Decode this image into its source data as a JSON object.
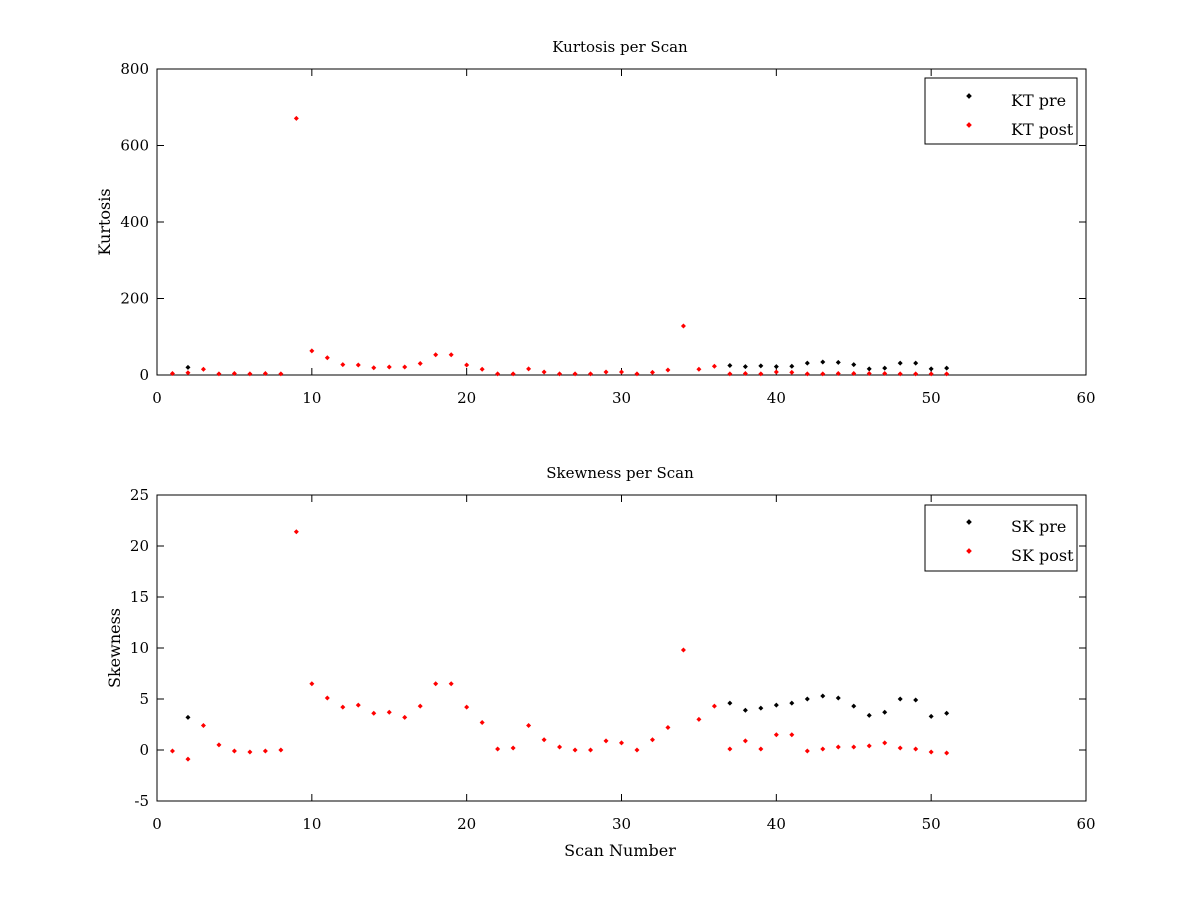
{
  "chart_data": [
    {
      "type": "scatter",
      "title": "Kurtosis per Scan",
      "xlabel": "",
      "ylabel": "Kurtosis",
      "xlim": [
        0,
        60
      ],
      "ylim": [
        0,
        800
      ],
      "x_ticks": [
        0,
        10,
        20,
        30,
        40,
        50,
        60
      ],
      "y_ticks": [
        0,
        200,
        400,
        600,
        800
      ],
      "grid": false,
      "legend_position": "top-right",
      "series": [
        {
          "name": "KT pre",
          "color": "#000000",
          "x": [
            2,
            37,
            38,
            39,
            40,
            41,
            42,
            43,
            44,
            45,
            46,
            47,
            48,
            49,
            50,
            51
          ],
          "y": [
            20,
            25,
            22,
            24,
            22,
            23,
            31,
            34,
            33,
            27,
            16,
            18,
            31,
            31,
            16,
            18
          ]
        },
        {
          "name": "KT post",
          "color": "#ff0000",
          "x": [
            1,
            2,
            3,
            4,
            5,
            6,
            7,
            8,
            9,
            10,
            11,
            12,
            13,
            14,
            15,
            16,
            17,
            18,
            19,
            20,
            21,
            22,
            23,
            24,
            25,
            26,
            27,
            28,
            29,
            30,
            31,
            32,
            33,
            34,
            35,
            36,
            37,
            38,
            39,
            40,
            41,
            42,
            43,
            44,
            45,
            46,
            47,
            48,
            49,
            50,
            51
          ],
          "y": [
            4,
            6,
            15,
            3,
            4,
            3,
            4,
            3,
            671,
            63,
            45,
            27,
            26,
            19,
            21,
            21,
            30,
            53,
            53,
            26,
            15,
            3,
            3,
            16,
            8,
            3,
            3,
            3,
            8,
            8,
            3,
            7,
            13,
            128,
            15,
            23,
            3,
            4,
            3,
            8,
            7,
            3,
            3,
            4,
            4,
            4,
            4,
            3,
            3,
            3,
            3
          ]
        }
      ]
    },
    {
      "type": "scatter",
      "title": "Skewness per Scan",
      "xlabel": "Scan Number",
      "ylabel": "Skewness",
      "xlim": [
        0,
        60
      ],
      "ylim": [
        -5,
        25
      ],
      "x_ticks": [
        0,
        10,
        20,
        30,
        40,
        50,
        60
      ],
      "y_ticks": [
        -5,
        0,
        5,
        10,
        15,
        20,
        25
      ],
      "grid": false,
      "legend_position": "top-right",
      "series": [
        {
          "name": "SK pre",
          "color": "#000000",
          "x": [
            2,
            37,
            38,
            39,
            40,
            41,
            42,
            43,
            44,
            45,
            46,
            47,
            48,
            49,
            50,
            51
          ],
          "y": [
            3.2,
            4.6,
            3.9,
            4.1,
            4.4,
            4.6,
            5.0,
            5.3,
            5.1,
            4.3,
            3.4,
            3.7,
            5.0,
            4.9,
            3.3,
            3.6
          ]
        },
        {
          "name": "SK post",
          "color": "#ff0000",
          "x": [
            1,
            2,
            3,
            4,
            5,
            6,
            7,
            8,
            9,
            10,
            11,
            12,
            13,
            14,
            15,
            16,
            17,
            18,
            19,
            20,
            21,
            22,
            23,
            24,
            25,
            26,
            27,
            28,
            29,
            30,
            31,
            32,
            33,
            34,
            35,
            36,
            37,
            38,
            39,
            40,
            41,
            42,
            43,
            44,
            45,
            46,
            47,
            48,
            49,
            50,
            51
          ],
          "y": [
            -0.1,
            -0.9,
            2.4,
            0.5,
            -0.1,
            -0.2,
            -0.1,
            0.0,
            21.4,
            6.5,
            5.1,
            4.2,
            4.4,
            3.6,
            3.7,
            3.2,
            4.3,
            6.5,
            6.5,
            4.2,
            2.7,
            0.1,
            0.2,
            2.4,
            1.0,
            0.3,
            0.0,
            0.0,
            0.9,
            0.7,
            0.0,
            1.0,
            2.2,
            9.8,
            3.0,
            4.3,
            0.1,
            0.9,
            0.1,
            1.5,
            1.5,
            -0.1,
            0.1,
            0.3,
            0.3,
            0.4,
            0.7,
            0.2,
            0.1,
            -0.2,
            -0.3
          ]
        }
      ]
    }
  ]
}
